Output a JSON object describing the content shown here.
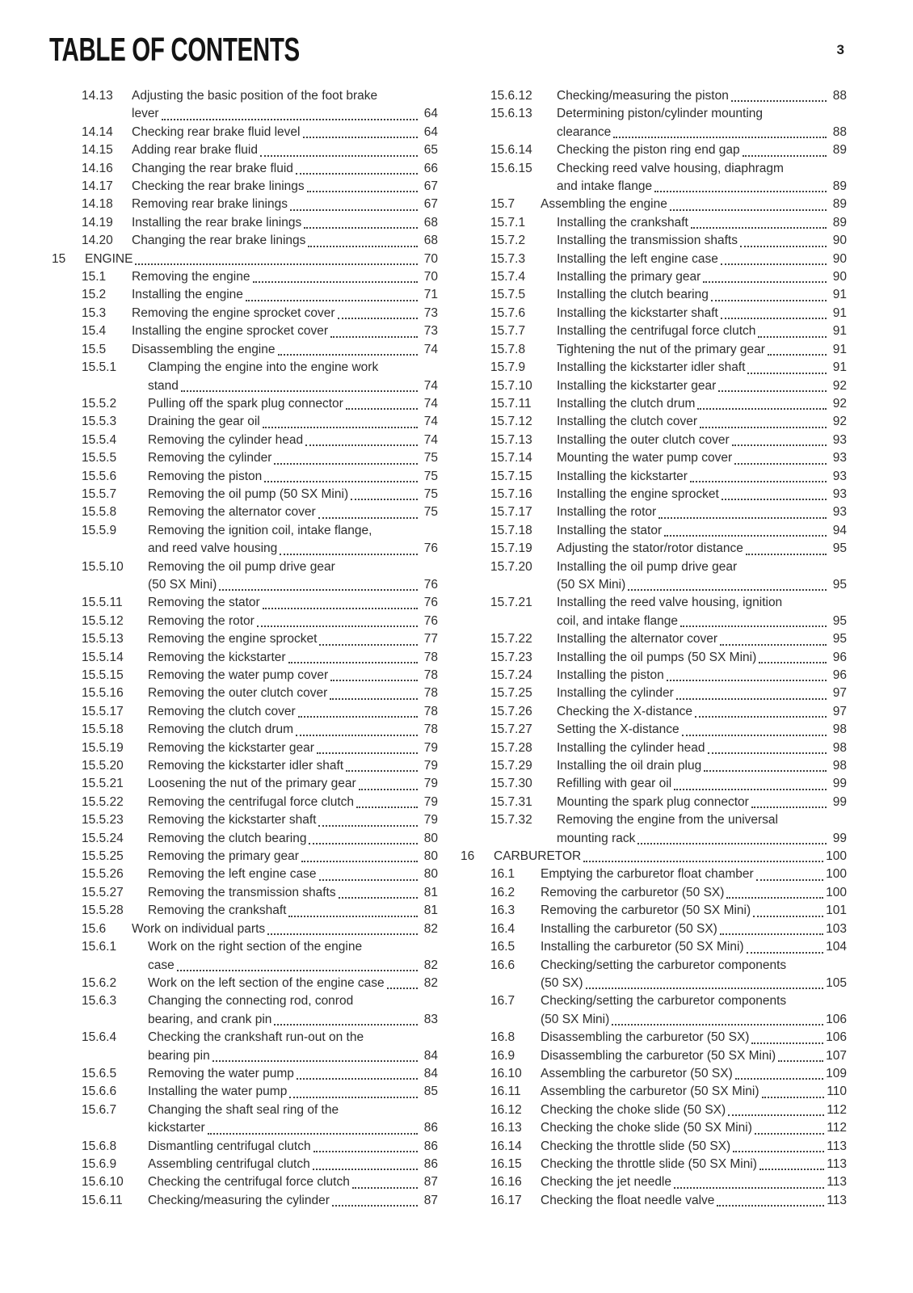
{
  "document": {
    "title": "TABLE OF CONTENTS",
    "page_number": "3"
  },
  "toc": {
    "left_column": [
      {
        "num": "14.13",
        "level": 2,
        "lines": [
          "Adjusting the basic position of the foot brake",
          "lever"
        ],
        "page": "64"
      },
      {
        "num": "14.14",
        "level": 2,
        "lines": [
          "Checking rear brake fluid level"
        ],
        "page": "64"
      },
      {
        "num": "14.15",
        "level": 2,
        "lines": [
          "Adding rear brake fluid"
        ],
        "page": "65"
      },
      {
        "num": "14.16",
        "level": 2,
        "lines": [
          "Changing the rear brake fluid"
        ],
        "page": "66"
      },
      {
        "num": "14.17",
        "level": 2,
        "lines": [
          "Checking the rear brake linings"
        ],
        "page": "67"
      },
      {
        "num": "14.18",
        "level": 2,
        "lines": [
          "Removing rear brake linings"
        ],
        "page": "67"
      },
      {
        "num": "14.19",
        "level": 2,
        "lines": [
          "Installing the rear brake linings"
        ],
        "page": "68"
      },
      {
        "num": "14.20",
        "level": 2,
        "lines": [
          "Changing the rear brake linings"
        ],
        "page": "68"
      },
      {
        "num": "15",
        "level": 1,
        "lines": [
          "ENGINE"
        ],
        "page": "70"
      },
      {
        "num": "15.1",
        "level": 2,
        "lines": [
          "Removing the engine"
        ],
        "page": "70"
      },
      {
        "num": "15.2",
        "level": 2,
        "lines": [
          "Installing the engine"
        ],
        "page": "71"
      },
      {
        "num": "15.3",
        "level": 2,
        "lines": [
          "Removing the engine sprocket cover"
        ],
        "page": "73"
      },
      {
        "num": "15.4",
        "level": 2,
        "lines": [
          "Installing the engine sprocket cover"
        ],
        "page": "73"
      },
      {
        "num": "15.5",
        "level": 2,
        "lines": [
          "Disassembling the engine"
        ],
        "page": "74"
      },
      {
        "num": "15.5.1",
        "level": 3,
        "lines": [
          "Clamping the engine into the engine work",
          "stand"
        ],
        "page": "74"
      },
      {
        "num": "15.5.2",
        "level": 3,
        "lines": [
          "Pulling off the spark plug connector"
        ],
        "page": "74"
      },
      {
        "num": "15.5.3",
        "level": 3,
        "lines": [
          "Draining the gear oil"
        ],
        "page": "74"
      },
      {
        "num": "15.5.4",
        "level": 3,
        "lines": [
          "Removing the cylinder head"
        ],
        "page": "74"
      },
      {
        "num": "15.5.5",
        "level": 3,
        "lines": [
          "Removing the cylinder"
        ],
        "page": "75"
      },
      {
        "num": "15.5.6",
        "level": 3,
        "lines": [
          "Removing the piston"
        ],
        "page": "75"
      },
      {
        "num": "15.5.7",
        "level": 3,
        "lines": [
          "Removing the oil pump (50 SX Mini)"
        ],
        "page": "75"
      },
      {
        "num": "15.5.8",
        "level": 3,
        "lines": [
          "Removing the alternator cover"
        ],
        "page": "75"
      },
      {
        "num": "15.5.9",
        "level": 3,
        "lines": [
          "Removing the ignition coil, intake flange,",
          "and reed valve housing"
        ],
        "page": "76"
      },
      {
        "num": "15.5.10",
        "level": 3,
        "lines": [
          "Removing the oil pump drive gear",
          "(50 SX Mini)"
        ],
        "page": "76"
      },
      {
        "num": "15.5.11",
        "level": 3,
        "lines": [
          "Removing the stator"
        ],
        "page": "76"
      },
      {
        "num": "15.5.12",
        "level": 3,
        "lines": [
          "Removing the rotor"
        ],
        "page": "76"
      },
      {
        "num": "15.5.13",
        "level": 3,
        "lines": [
          "Removing the engine sprocket"
        ],
        "page": "77"
      },
      {
        "num": "15.5.14",
        "level": 3,
        "lines": [
          "Removing the kickstarter"
        ],
        "page": "78"
      },
      {
        "num": "15.5.15",
        "level": 3,
        "lines": [
          "Removing the water pump cover"
        ],
        "page": "78"
      },
      {
        "num": "15.5.16",
        "level": 3,
        "lines": [
          "Removing the outer clutch cover"
        ],
        "page": "78"
      },
      {
        "num": "15.5.17",
        "level": 3,
        "lines": [
          "Removing the clutch cover"
        ],
        "page": "78"
      },
      {
        "num": "15.5.18",
        "level": 3,
        "lines": [
          "Removing the clutch drum"
        ],
        "page": "78"
      },
      {
        "num": "15.5.19",
        "level": 3,
        "lines": [
          "Removing the kickstarter gear"
        ],
        "page": "79"
      },
      {
        "num": "15.5.20",
        "level": 3,
        "lines": [
          "Removing the kickstarter idler shaft"
        ],
        "page": "79"
      },
      {
        "num": "15.5.21",
        "level": 3,
        "lines": [
          "Loosening the nut of the primary gear"
        ],
        "page": "79"
      },
      {
        "num": "15.5.22",
        "level": 3,
        "lines": [
          "Removing the centrifugal force clutch"
        ],
        "page": "79"
      },
      {
        "num": "15.5.23",
        "level": 3,
        "lines": [
          "Removing the kickstarter shaft"
        ],
        "page": "79"
      },
      {
        "num": "15.5.24",
        "level": 3,
        "lines": [
          "Removing the clutch bearing"
        ],
        "page": "80"
      },
      {
        "num": "15.5.25",
        "level": 3,
        "lines": [
          "Removing the primary gear"
        ],
        "page": "80"
      },
      {
        "num": "15.5.26",
        "level": 3,
        "lines": [
          "Removing the left engine case"
        ],
        "page": "80"
      },
      {
        "num": "15.5.27",
        "level": 3,
        "lines": [
          "Removing the transmission shafts"
        ],
        "page": "81"
      },
      {
        "num": "15.5.28",
        "level": 3,
        "lines": [
          "Removing the crankshaft"
        ],
        "page": "81"
      },
      {
        "num": "15.6",
        "level": 2,
        "lines": [
          "Work on individual parts"
        ],
        "page": "82"
      },
      {
        "num": "15.6.1",
        "level": 3,
        "lines": [
          "Work on the right section of the engine",
          "case"
        ],
        "page": "82"
      },
      {
        "num": "15.6.2",
        "level": 3,
        "lines": [
          "Work on the left section of the engine case"
        ],
        "page": "82"
      },
      {
        "num": "15.6.3",
        "level": 3,
        "lines": [
          "Changing the connecting rod, conrod",
          "bearing, and crank pin"
        ],
        "page": "83"
      },
      {
        "num": "15.6.4",
        "level": 3,
        "lines": [
          "Checking the crankshaft run-out on the",
          "bearing pin"
        ],
        "page": "84"
      },
      {
        "num": "15.6.5",
        "level": 3,
        "lines": [
          "Removing the water pump"
        ],
        "page": "84"
      },
      {
        "num": "15.6.6",
        "level": 3,
        "lines": [
          "Installing the water pump"
        ],
        "page": "85"
      },
      {
        "num": "15.6.7",
        "level": 3,
        "lines": [
          "Changing the shaft seal ring of the",
          "kickstarter"
        ],
        "page": "86"
      },
      {
        "num": "15.6.8",
        "level": 3,
        "lines": [
          "Dismantling centrifugal clutch"
        ],
        "page": "86"
      },
      {
        "num": "15.6.9",
        "level": 3,
        "lines": [
          "Assembling centrifugal clutch"
        ],
        "page": "86"
      },
      {
        "num": "15.6.10",
        "level": 3,
        "lines": [
          "Checking the centrifugal force clutch"
        ],
        "page": "87"
      },
      {
        "num": "15.6.11",
        "level": 3,
        "lines": [
          "Checking/measuring the cylinder"
        ],
        "page": "87"
      }
    ],
    "right_column": [
      {
        "num": "15.6.12",
        "level": 3,
        "lines": [
          "Checking/measuring the piston"
        ],
        "page": "88"
      },
      {
        "num": "15.6.13",
        "level": 3,
        "lines": [
          "Determining piston/cylinder mounting",
          "clearance"
        ],
        "page": "88"
      },
      {
        "num": "15.6.14",
        "level": 3,
        "lines": [
          "Checking the piston ring end gap"
        ],
        "page": "89"
      },
      {
        "num": "15.6.15",
        "level": 3,
        "lines": [
          "Checking reed valve housing, diaphragm",
          "and intake flange"
        ],
        "page": "89"
      },
      {
        "num": "15.7",
        "level": 2,
        "lines": [
          "Assembling the engine"
        ],
        "page": "89"
      },
      {
        "num": "15.7.1",
        "level": 3,
        "lines": [
          "Installing the crankshaft"
        ],
        "page": "89"
      },
      {
        "num": "15.7.2",
        "level": 3,
        "lines": [
          "Installing the transmission shafts"
        ],
        "page": "90"
      },
      {
        "num": "15.7.3",
        "level": 3,
        "lines": [
          "Installing the left engine case"
        ],
        "page": "90"
      },
      {
        "num": "15.7.4",
        "level": 3,
        "lines": [
          "Installing the primary gear"
        ],
        "page": "90"
      },
      {
        "num": "15.7.5",
        "level": 3,
        "lines": [
          "Installing the clutch bearing"
        ],
        "page": "91"
      },
      {
        "num": "15.7.6",
        "level": 3,
        "lines": [
          "Installing the kickstarter shaft"
        ],
        "page": "91"
      },
      {
        "num": "15.7.7",
        "level": 3,
        "lines": [
          "Installing the centrifugal force clutch"
        ],
        "page": "91"
      },
      {
        "num": "15.7.8",
        "level": 3,
        "lines": [
          "Tightening the nut of the primary gear"
        ],
        "page": "91"
      },
      {
        "num": "15.7.9",
        "level": 3,
        "lines": [
          "Installing the kickstarter idler shaft"
        ],
        "page": "91"
      },
      {
        "num": "15.7.10",
        "level": 3,
        "lines": [
          "Installing the kickstarter gear"
        ],
        "page": "92"
      },
      {
        "num": "15.7.11",
        "level": 3,
        "lines": [
          "Installing the clutch drum"
        ],
        "page": "92"
      },
      {
        "num": "15.7.12",
        "level": 3,
        "lines": [
          "Installing the clutch cover"
        ],
        "page": "92"
      },
      {
        "num": "15.7.13",
        "level": 3,
        "lines": [
          "Installing the outer clutch cover"
        ],
        "page": "93"
      },
      {
        "num": "15.7.14",
        "level": 3,
        "lines": [
          "Mounting the water pump cover"
        ],
        "page": "93"
      },
      {
        "num": "15.7.15",
        "level": 3,
        "lines": [
          "Installing the kickstarter"
        ],
        "page": "93"
      },
      {
        "num": "15.7.16",
        "level": 3,
        "lines": [
          "Installing the engine sprocket"
        ],
        "page": "93"
      },
      {
        "num": "15.7.17",
        "level": 3,
        "lines": [
          "Installing the rotor"
        ],
        "page": "93"
      },
      {
        "num": "15.7.18",
        "level": 3,
        "lines": [
          "Installing the stator"
        ],
        "page": "94"
      },
      {
        "num": "15.7.19",
        "level": 3,
        "lines": [
          "Adjusting the stator/rotor distance"
        ],
        "page": "95"
      },
      {
        "num": "15.7.20",
        "level": 3,
        "lines": [
          "Installing the oil pump drive gear",
          "(50 SX Mini)"
        ],
        "page": "95"
      },
      {
        "num": "15.7.21",
        "level": 3,
        "lines": [
          "Installing the reed valve housing, ignition",
          "coil, and intake flange"
        ],
        "page": "95"
      },
      {
        "num": "15.7.22",
        "level": 3,
        "lines": [
          "Installing the alternator cover"
        ],
        "page": "95"
      },
      {
        "num": "15.7.23",
        "level": 3,
        "lines": [
          "Installing the oil pumps (50 SX Mini)"
        ],
        "page": "96"
      },
      {
        "num": "15.7.24",
        "level": 3,
        "lines": [
          "Installing the piston"
        ],
        "page": "96"
      },
      {
        "num": "15.7.25",
        "level": 3,
        "lines": [
          "Installing the cylinder"
        ],
        "page": "97"
      },
      {
        "num": "15.7.26",
        "level": 3,
        "lines": [
          "Checking the X-distance"
        ],
        "page": "97"
      },
      {
        "num": "15.7.27",
        "level": 3,
        "lines": [
          "Setting the X-distance"
        ],
        "page": "98"
      },
      {
        "num": "15.7.28",
        "level": 3,
        "lines": [
          "Installing the cylinder head"
        ],
        "page": "98"
      },
      {
        "num": "15.7.29",
        "level": 3,
        "lines": [
          "Installing the oil drain plug"
        ],
        "page": "98"
      },
      {
        "num": "15.7.30",
        "level": 3,
        "lines": [
          "Refilling with gear oil"
        ],
        "page": "99"
      },
      {
        "num": "15.7.31",
        "level": 3,
        "lines": [
          "Mounting the spark plug connector"
        ],
        "page": "99"
      },
      {
        "num": "15.7.32",
        "level": 3,
        "lines": [
          "Removing the engine from the universal",
          "mounting rack"
        ],
        "page": "99"
      },
      {
        "num": "16",
        "level": 1,
        "lines": [
          "CARBURETOR"
        ],
        "page": "100"
      },
      {
        "num": "16.1",
        "level": 2,
        "lines": [
          "Emptying the carburetor float chamber"
        ],
        "page": "100"
      },
      {
        "num": "16.2",
        "level": 2,
        "lines": [
          "Removing the carburetor (50 SX)"
        ],
        "page": "100"
      },
      {
        "num": "16.3",
        "level": 2,
        "lines": [
          "Removing the carburetor (50 SX Mini)"
        ],
        "page": "101"
      },
      {
        "num": "16.4",
        "level": 2,
        "lines": [
          "Installing the carburetor (50 SX)"
        ],
        "page": "103"
      },
      {
        "num": "16.5",
        "level": 2,
        "lines": [
          "Installing the carburetor (50 SX Mini)"
        ],
        "page": "104"
      },
      {
        "num": "16.6",
        "level": 2,
        "lines": [
          "Checking/setting the carburetor components",
          "(50 SX)"
        ],
        "page": "105"
      },
      {
        "num": "16.7",
        "level": 2,
        "lines": [
          "Checking/setting the carburetor components",
          "(50 SX Mini)"
        ],
        "page": "106"
      },
      {
        "num": "16.8",
        "level": 2,
        "lines": [
          "Disassembling the carburetor (50 SX)"
        ],
        "page": "106"
      },
      {
        "num": "16.9",
        "level": 2,
        "lines": [
          "Disassembling the carburetor (50 SX Mini)"
        ],
        "page": "107"
      },
      {
        "num": "16.10",
        "level": 2,
        "lines": [
          "Assembling the carburetor (50 SX)"
        ],
        "page": "109"
      },
      {
        "num": "16.11",
        "level": 2,
        "lines": [
          "Assembling the carburetor (50 SX Mini)"
        ],
        "page": "110"
      },
      {
        "num": "16.12",
        "level": 2,
        "lines": [
          "Checking the choke slide (50 SX)"
        ],
        "page": "112"
      },
      {
        "num": "16.13",
        "level": 2,
        "lines": [
          "Checking the choke slide (50 SX Mini)"
        ],
        "page": "112"
      },
      {
        "num": "16.14",
        "level": 2,
        "lines": [
          "Checking the throttle slide (50 SX)"
        ],
        "page": "113"
      },
      {
        "num": "16.15",
        "level": 2,
        "lines": [
          "Checking the throttle slide (50 SX Mini)"
        ],
        "page": "113"
      },
      {
        "num": "16.16",
        "level": 2,
        "lines": [
          "Checking the jet needle"
        ],
        "page": "113"
      },
      {
        "num": "16.17",
        "level": 2,
        "lines": [
          "Checking the float needle valve"
        ],
        "page": "113"
      }
    ]
  }
}
